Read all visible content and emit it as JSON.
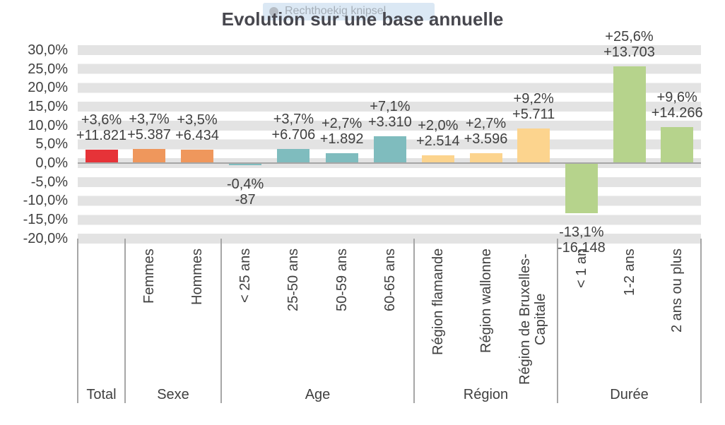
{
  "overlay_toast": {
    "label": "Rechthoekig knipsel"
  },
  "chart_data": {
    "type": "bar",
    "title": "Evolution sur une base annuelle",
    "y_axis": {
      "ylim": [
        -20,
        30
      ],
      "unit": "%",
      "tick_values": [
        30,
        25,
        20,
        15,
        10,
        5,
        0,
        -5,
        -10,
        -15,
        -20
      ],
      "tick_labels": [
        "30,0%",
        "25,0%",
        "20,0%",
        "15,0%",
        "10,0%",
        "5,0%",
        "0,0%",
        "-5,0%",
        "-10,0%",
        "-15,0%",
        "-20,0%"
      ]
    },
    "legend": "none",
    "grid": "banded-rows",
    "groups": [
      {
        "label": "Total",
        "color": "#e63338",
        "bars": [
          {
            "category": "",
            "pct": 3.6,
            "pct_label": "+3,6%",
            "abs_label": "+11.821"
          }
        ]
      },
      {
        "label": "Sexe",
        "color": "#ef975c",
        "bars": [
          {
            "category": "Femmes",
            "pct": 3.7,
            "pct_label": "+3,7%",
            "abs_label": "+5.387"
          },
          {
            "category": "Hommes",
            "pct": 3.5,
            "pct_label": "+3,5%",
            "abs_label": "+6.434"
          }
        ]
      },
      {
        "label": "Age",
        "color": "#7fbcbe",
        "bars": [
          {
            "category": "< 25 ans",
            "pct": -0.4,
            "pct_label": "-0,4%",
            "abs_label": "-87"
          },
          {
            "category": "25-50 ans",
            "pct": 3.7,
            "pct_label": "+3,7%",
            "abs_label": "+6.706"
          },
          {
            "category": "50-59 ans",
            "pct": 2.7,
            "pct_label": "+2,7%",
            "abs_label": "+1.892"
          },
          {
            "category": "60-65 ans",
            "pct": 7.1,
            "pct_label": "+7,1%",
            "abs_label": "+3.310"
          }
        ]
      },
      {
        "label": "Région",
        "color": "#fcd48e",
        "bars": [
          {
            "category": "Région flamande",
            "pct": 2.0,
            "pct_label": "+2,0%",
            "abs_label": "+2.514"
          },
          {
            "category": "Région wallonne",
            "pct": 2.7,
            "pct_label": "+2,7%",
            "abs_label": "+3.596"
          },
          {
            "category": [
              "Région de Bruxelles-",
              "Capitale"
            ],
            "pct": 9.2,
            "pct_label": "+9,2%",
            "abs_label": "+5.711"
          }
        ]
      },
      {
        "label": "Durée",
        "color": "#b6d38c",
        "bars": [
          {
            "category": "< 1 an",
            "pct": -13.1,
            "pct_label": "-13,1%",
            "abs_label": "-16.148"
          },
          {
            "category": "1-2 ans",
            "pct": 25.6,
            "pct_label": "+25,6%",
            "abs_label": "+13.703"
          },
          {
            "category": "2 ans ou plus",
            "pct": 9.6,
            "pct_label": "+9,6%",
            "abs_label": "+14.266"
          }
        ]
      }
    ]
  }
}
